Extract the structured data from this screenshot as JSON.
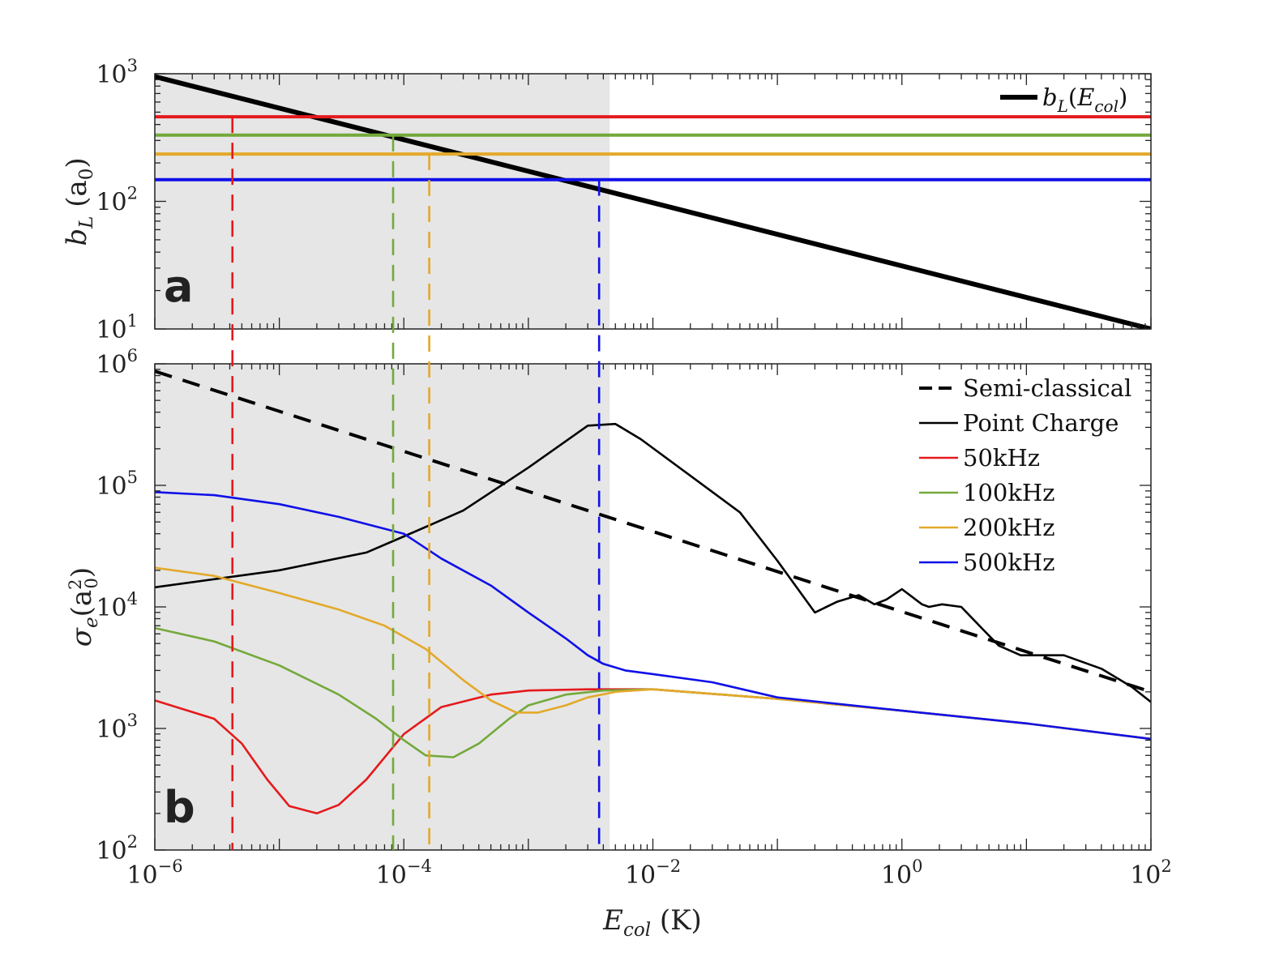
{
  "chart_data": [
    {
      "panel": "a",
      "type": "line",
      "xscale": "log",
      "yscale": "log",
      "xlim": [
        1e-06,
        100
      ],
      "ylim": [
        10,
        1000
      ],
      "ylabel": "b_L (a_0)",
      "ytick_labels": [
        {
          "base": "10",
          "exp": "1",
          "value": 10
        },
        {
          "base": "10",
          "exp": "2",
          "value": 100
        },
        {
          "base": "10",
          "exp": "3",
          "value": 1000
        }
      ],
      "shaded_region_x": [
        1e-06,
        0.0045
      ],
      "series": [
        {
          "name": "b_L(E_col)",
          "color": "#000000",
          "style": "solid",
          "x": [
            1e-06,
            100
          ],
          "y": [
            950,
            10
          ]
        },
        {
          "name": "50kHz",
          "color": "#e41a1c",
          "style": "solid",
          "x": [
            1e-06,
            100
          ],
          "y": [
            460,
            460
          ]
        },
        {
          "name": "100kHz",
          "color": "#74a93b",
          "style": "solid",
          "x": [
            1e-06,
            100
          ],
          "y": [
            330,
            330
          ]
        },
        {
          "name": "200kHz",
          "color": "#e3a92a",
          "style": "solid",
          "x": [
            1e-06,
            100
          ],
          "y": [
            235,
            235
          ]
        },
        {
          "name": "500kHz",
          "color": "#1010e8",
          "style": "solid",
          "x": [
            1e-06,
            100
          ],
          "y": [
            148,
            148
          ]
        }
      ],
      "legend": {
        "placement": "top-right",
        "entries": [
          {
            "label": "b",
            "sub": "L",
            "arg": "E",
            "argsub": "col"
          }
        ]
      },
      "panel_label": "a"
    },
    {
      "panel": "b",
      "type": "line",
      "xscale": "log",
      "yscale": "log",
      "xlim": [
        1e-06,
        100
      ],
      "ylim": [
        100,
        1000000
      ],
      "xlabel": "E_col (K)",
      "ylabel": "σ_e(a_0^2)",
      "xtick_labels": [
        {
          "base": "10",
          "exp": "−6",
          "value": 1e-06
        },
        {
          "base": "10",
          "exp": "−4",
          "value": 0.0001
        },
        {
          "base": "10",
          "exp": "−2",
          "value": 0.01
        },
        {
          "base": "10",
          "exp": "0",
          "value": 1
        },
        {
          "base": "10",
          "exp": "2",
          "value": 100
        }
      ],
      "ytick_labels": [
        {
          "base": "10",
          "exp": "2",
          "value": 100
        },
        {
          "base": "10",
          "exp": "3",
          "value": 1000
        },
        {
          "base": "10",
          "exp": "4",
          "value": 10000
        },
        {
          "base": "10",
          "exp": "5",
          "value": 100000
        },
        {
          "base": "10",
          "exp": "6",
          "value": 1000000
        }
      ],
      "shaded_region_x": [
        1e-06,
        0.0045
      ],
      "cutoff_markers": [
        {
          "name": "50kHz",
          "color": "#e41a1c",
          "x": 4.2e-06
        },
        {
          "name": "100kHz",
          "color": "#74a93b",
          "x": 8.2e-05
        },
        {
          "name": "200kHz",
          "color": "#e3a92a",
          "x": 0.00016
        },
        {
          "name": "500kHz",
          "color": "#1010e8",
          "x": 0.0037
        }
      ],
      "series": [
        {
          "name": "Semi-classical",
          "color": "#000000",
          "style": "dashed",
          "x": [
            1e-06,
            100
          ],
          "y": [
            870000,
            2000
          ]
        },
        {
          "name": "Point Charge",
          "color": "#000000",
          "style": "solid",
          "x": [
            1e-06,
            1e-05,
            5e-05,
            0.0001,
            0.0003,
            0.001,
            0.003,
            0.005,
            0.008,
            0.02,
            0.05,
            0.1,
            0.2,
            0.3,
            0.45,
            0.6,
            0.75,
            1.0,
            1.45,
            1.65,
            2.1,
            3,
            4.5,
            6,
            9,
            12,
            20,
            40,
            70,
            100
          ],
          "y": [
            14500,
            20000,
            28000,
            38000,
            62000,
            140000,
            310000,
            320000,
            240000,
            120000,
            60000,
            24000,
            9000,
            11000,
            12500,
            10500,
            11500,
            14000,
            10500,
            10000,
            10500,
            10000,
            6500,
            4800,
            4000,
            4000,
            4000,
            3100,
            2200,
            1650
          ]
        },
        {
          "name": "50kHz",
          "color": "#e41a1c",
          "style": "solid",
          "x": [
            1e-06,
            3e-06,
            5e-06,
            8e-06,
            1.2e-05,
            2e-05,
            3e-05,
            5e-05,
            0.0001,
            0.0002,
            0.0005,
            0.001,
            0.003,
            0.01,
            0.1,
            1,
            10,
            100
          ],
          "y": [
            1700,
            1200,
            750,
            380,
            230,
            200,
            235,
            380,
            900,
            1500,
            1900,
            2050,
            2100,
            2100,
            1750,
            1400,
            1100,
            820
          ]
        },
        {
          "name": "100kHz",
          "color": "#74a93b",
          "style": "solid",
          "x": [
            1e-06,
            3e-06,
            1e-05,
            3e-05,
            6e-05,
            0.0001,
            0.00015,
            0.00025,
            0.0004,
            0.0007,
            0.001,
            0.002,
            0.004,
            0.01,
            0.1,
            1,
            10,
            100
          ],
          "y": [
            6700,
            5200,
            3300,
            1900,
            1200,
            800,
            600,
            580,
            750,
            1200,
            1550,
            1900,
            2050,
            2100,
            1750,
            1400,
            1100,
            820
          ]
        },
        {
          "name": "200kHz",
          "color": "#e3a92a",
          "style": "solid",
          "x": [
            1e-06,
            3e-06,
            1e-05,
            3e-05,
            7e-05,
            0.00015,
            0.0003,
            0.0005,
            0.0008,
            0.0012,
            0.002,
            0.003,
            0.005,
            0.01,
            0.1,
            1,
            10,
            100
          ],
          "y": [
            21000,
            18000,
            13000,
            9500,
            7000,
            4500,
            2500,
            1700,
            1350,
            1350,
            1550,
            1800,
            2000,
            2100,
            1750,
            1400,
            1100,
            820
          ]
        },
        {
          "name": "500kHz",
          "color": "#1010e8",
          "style": "solid",
          "x": [
            1e-06,
            3e-06,
            1e-05,
            3e-05,
            0.0001,
            0.0002,
            0.0005,
            0.001,
            0.002,
            0.003,
            0.004,
            0.006,
            0.01,
            0.03,
            0.1,
            1,
            10,
            100
          ],
          "y": [
            88000,
            83000,
            70000,
            55000,
            40000,
            25000,
            15000,
            9000,
            5500,
            4000,
            3400,
            3000,
            2800,
            2400,
            1800,
            1400,
            1100,
            820
          ]
        }
      ],
      "legend": {
        "placement": "top-right",
        "entries": [
          "Semi-classical",
          "Point Charge",
          "50kHz",
          "100kHz",
          "200kHz",
          "500kHz"
        ]
      },
      "panel_label": "b"
    }
  ]
}
